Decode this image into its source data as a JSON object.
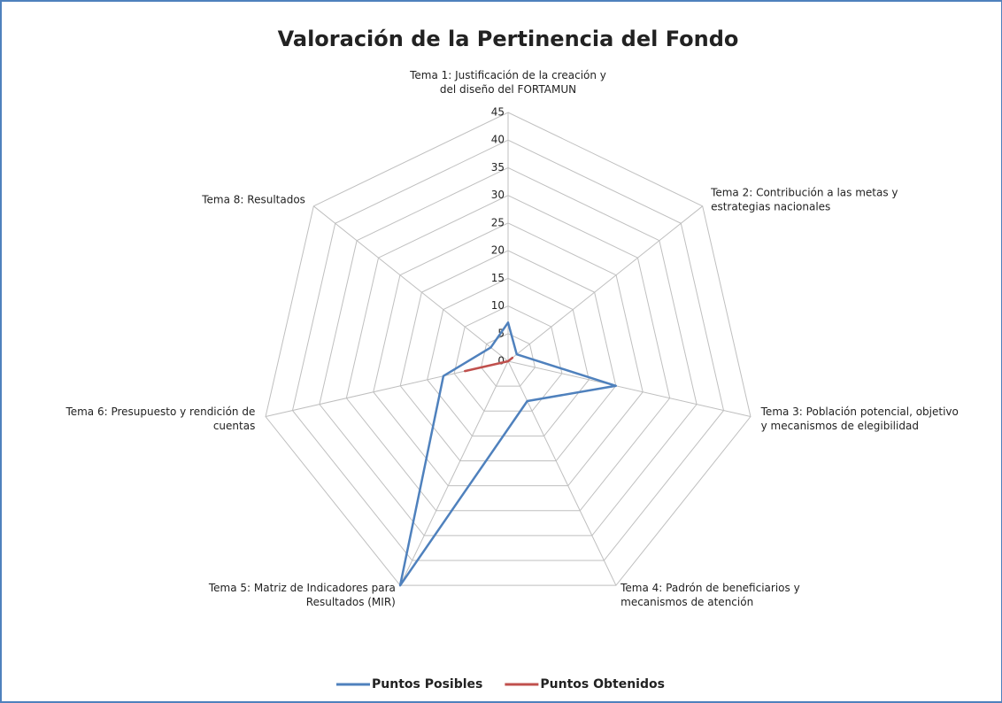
{
  "chart_data": {
    "type": "radar",
    "title": "Valoración de la Pertinencia del Fondo",
    "categories": [
      "Tema 1: Justificación de la creación y del diseño del FORTAMUN",
      "Tema 2: Contribución a las metas y estrategias nacionales",
      "Tema 3: Población potencial, objetivo y mecanismos de elegibilidad",
      "Tema 4: Padrón de beneficiarios y mecanismos de atención",
      "Tema 5: Matriz de Indicadores para Resultados (MIR)",
      "Tema 6: Presupuesto y rendición de cuentas",
      "Tema 8: Resultados"
    ],
    "series": [
      {
        "name": "Puntos Posibles",
        "color": "#4f81bd",
        "values": [
          7,
          2,
          20,
          8,
          45,
          12,
          4
        ]
      },
      {
        "name": "Puntos Obtenidos",
        "color": "#c0504d",
        "values": [
          0,
          1,
          0,
          0,
          0,
          8,
          0
        ]
      }
    ],
    "ylim": [
      0,
      45
    ],
    "yticks": [
      0,
      5,
      10,
      15,
      20,
      25,
      30,
      35,
      40,
      45
    ],
    "grid": true,
    "legend": "bottom"
  }
}
